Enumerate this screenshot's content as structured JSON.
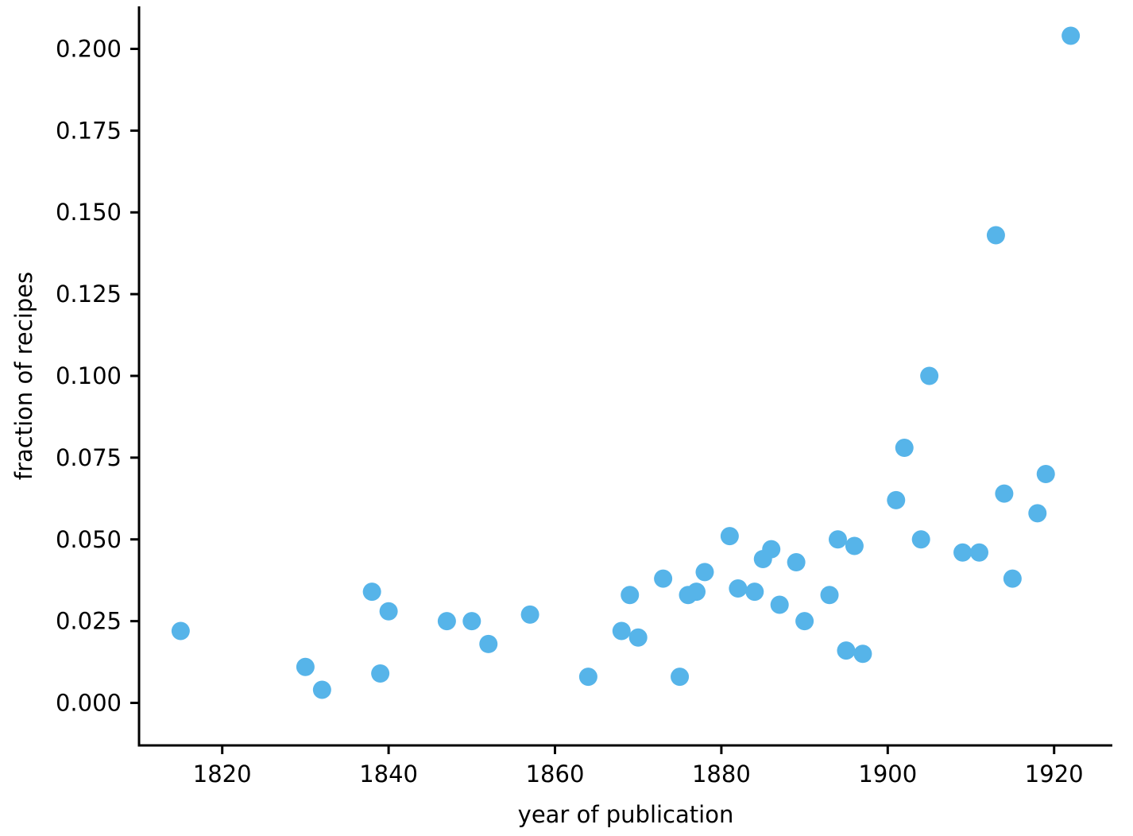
{
  "figure": {
    "background": "#ffffff",
    "dot_color": "#56B4E9",
    "axis_color": "#000000"
  },
  "chart_data": {
    "type": "scatter",
    "title": "",
    "xlabel": "year of publication",
    "ylabel": "fraction of recipes",
    "xlim": [
      1810,
      1927
    ],
    "ylim": [
      -0.013,
      0.213
    ],
    "xticks": [
      1820,
      1840,
      1860,
      1880,
      1900,
      1920
    ],
    "yticks": [
      0.0,
      0.025,
      0.05,
      0.075,
      0.1,
      0.125,
      0.15,
      0.175,
      0.2
    ],
    "grid": false,
    "legend": "none",
    "points": [
      [
        1815,
        0.022
      ],
      [
        1830,
        0.011
      ],
      [
        1832,
        0.004
      ],
      [
        1838,
        0.034
      ],
      [
        1839,
        0.009
      ],
      [
        1840,
        0.028
      ],
      [
        1847,
        0.025
      ],
      [
        1850,
        0.025
      ],
      [
        1852,
        0.018
      ],
      [
        1857,
        0.027
      ],
      [
        1864,
        0.008
      ],
      [
        1868,
        0.022
      ],
      [
        1869,
        0.033
      ],
      [
        1870,
        0.02
      ],
      [
        1873,
        0.038
      ],
      [
        1875,
        0.008
      ],
      [
        1876,
        0.033
      ],
      [
        1877,
        0.034
      ],
      [
        1878,
        0.04
      ],
      [
        1881,
        0.051
      ],
      [
        1882,
        0.035
      ],
      [
        1884,
        0.034
      ],
      [
        1885,
        0.044
      ],
      [
        1886,
        0.047
      ],
      [
        1887,
        0.03
      ],
      [
        1889,
        0.043
      ],
      [
        1890,
        0.025
      ],
      [
        1893,
        0.033
      ],
      [
        1894,
        0.05
      ],
      [
        1895,
        0.016
      ],
      [
        1896,
        0.048
      ],
      [
        1897,
        0.015
      ],
      [
        1901,
        0.062
      ],
      [
        1902,
        0.078
      ],
      [
        1904,
        0.05
      ],
      [
        1905,
        0.1
      ],
      [
        1909,
        0.046
      ],
      [
        1911,
        0.046
      ],
      [
        1913,
        0.143
      ],
      [
        1914,
        0.064
      ],
      [
        1915,
        0.038
      ],
      [
        1918,
        0.058
      ],
      [
        1919,
        0.07
      ],
      [
        1922,
        0.204
      ]
    ]
  }
}
